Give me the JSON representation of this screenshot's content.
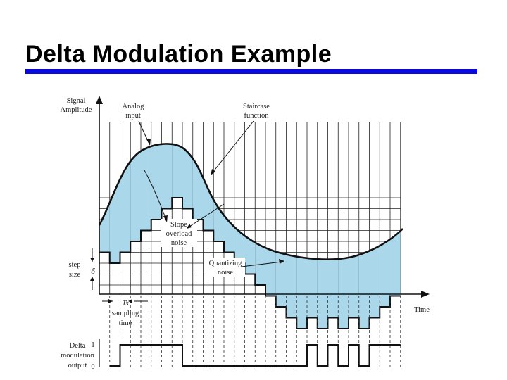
{
  "slide": {
    "title": "Delta Modulation Example"
  },
  "colors": {
    "rule": "#0a0ae0",
    "noise_fill": "#aad7ea",
    "ink": "#111111"
  },
  "figure": {
    "labels": {
      "signal_amplitude_line1": "Signal",
      "signal_amplitude_line2": "Amplitude",
      "analog_line1": "Analog",
      "analog_line2": "input",
      "staircase_line1": "Staircase",
      "staircase_line2": "function",
      "slope_line1": "Slope",
      "slope_line2": "overload",
      "slope_line3": "noise",
      "quant_line1": "Quantizing",
      "quant_line2": "noise",
      "step_line1": "step",
      "step_line2": "size",
      "delta_symbol": "δ",
      "ts_symbol": "Ts",
      "sampling_line1": "sampling",
      "sampling_line2": "time",
      "time_label": "Time",
      "dm_line1": "Delta",
      "dm_line2": "modulation",
      "dm_line3": "output",
      "level_one": "1",
      "level_zero": "0"
    },
    "staircase_levels": [
      -1,
      -2,
      -1,
      0,
      1,
      2,
      3,
      4,
      3,
      2,
      1,
      0,
      -1,
      -2,
      -3,
      -4,
      -5,
      -6,
      -7,
      -8,
      -7,
      -8,
      -7,
      -8,
      -7,
      -8,
      -7,
      -6,
      -5
    ],
    "dm_bits": [
      0,
      1,
      1,
      1,
      1,
      1,
      1,
      0,
      0,
      0,
      0,
      0,
      0,
      0,
      0,
      0,
      0,
      0,
      0,
      1,
      0,
      1,
      0,
      1,
      0,
      1,
      1,
      1
    ]
  }
}
